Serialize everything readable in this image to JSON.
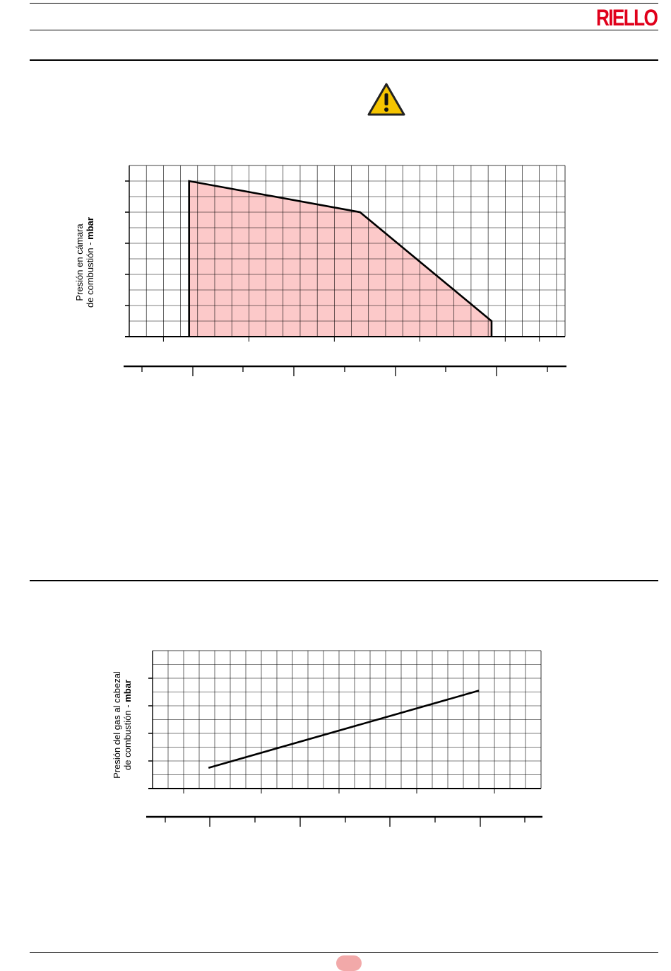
{
  "header": {
    "brand": "RIELLO",
    "brand_color": "#e0001b"
  },
  "warning": {
    "icon": "warning-triangle-icon",
    "color": "#f5c400"
  },
  "chart1": {
    "ylabel_line1": "Presión en cámara",
    "ylabel_line2_prefix": "de combustión - ",
    "ylabel_line2_unit": "mbar",
    "fill_color": "#fcc9c9"
  },
  "chart2": {
    "ylabel_line1": "Presión del gas al cabezal",
    "ylabel_line2_prefix": "de combustión - ",
    "ylabel_line2_unit": "mbar"
  },
  "footer": {
    "page_mark_color": "#f2a9a9"
  },
  "chart_data": [
    {
      "type": "area",
      "title": "",
      "xlabel": "",
      "ylabel": "Presión en cámara de combustión - mbar",
      "grid": true,
      "x_units": "grid cells",
      "y_units": "grid cells",
      "xlim": [
        0,
        25.5
      ],
      "ylim": [
        0,
        11
      ],
      "series": [
        {
          "x": [
            3.5,
            3.5,
            13.5,
            21.2,
            21.2
          ],
          "y": [
            0,
            10,
            8,
            1,
            0
          ]
        }
      ]
    },
    {
      "type": "line",
      "title": "",
      "xlabel": "",
      "ylabel": "Presión del gas al cabezal de combustión - mbar",
      "grid": true,
      "x_units": "grid cells",
      "y_units": "grid cells",
      "xlim": [
        0,
        25
      ],
      "ylim": [
        0,
        10
      ],
      "series": [
        {
          "x": [
            3.6,
            21
          ],
          "y": [
            1.5,
            7.1
          ]
        }
      ]
    }
  ]
}
